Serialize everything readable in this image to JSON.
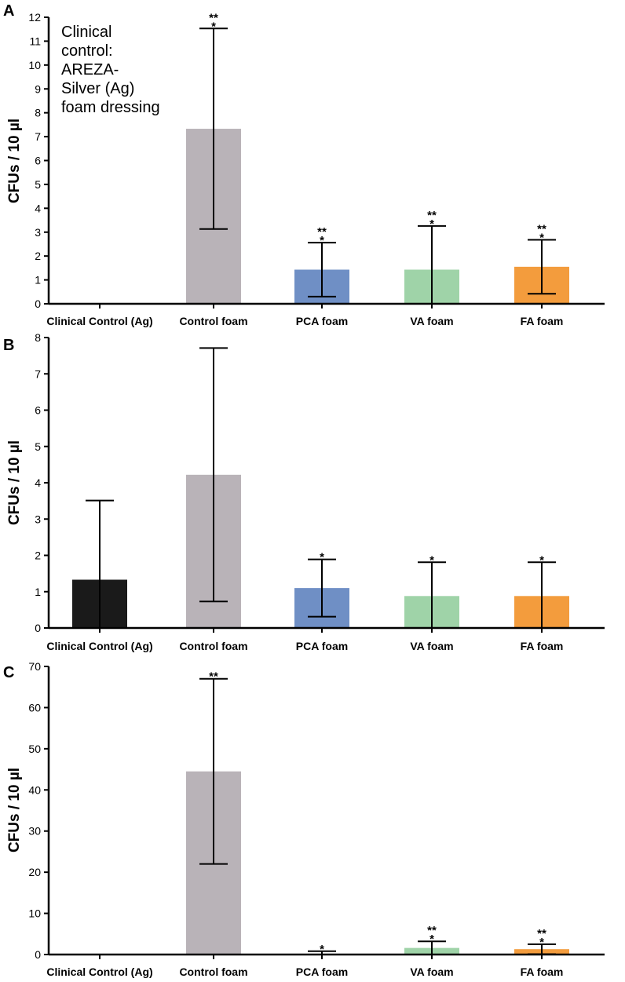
{
  "chart_data": [
    {
      "type": "bar",
      "panel": "A",
      "ylabel": "CFUs / 10 µl",
      "ylim": [
        0,
        12
      ],
      "yticks": [
        "0",
        "1",
        "2",
        "3",
        "4",
        "5",
        "6",
        "7",
        "8",
        "9",
        "10",
        "11",
        "12"
      ],
      "categories": [
        "Clinical Control (Ag)",
        "Control foam",
        "PCA foam",
        "VA foam",
        "FA foam"
      ],
      "values": [
        0,
        7.33,
        1.43,
        1.43,
        1.55
      ],
      "errors": [
        0,
        4.2,
        1.13,
        1.83,
        1.13
      ],
      "significance": [
        "",
        "**\n*",
        "**\n*",
        "**\n*",
        "**\n*"
      ],
      "colors": [
        "#1a1a1a",
        "#b9b3b8",
        "#6f8fc5",
        "#9fd3a8",
        "#f39c3d"
      ],
      "annotation": [
        "Clinical",
        "control:",
        "AREZA-",
        "Silver (Ag)",
        "foam dressing"
      ]
    },
    {
      "type": "bar",
      "panel": "B",
      "ylabel": "CFUs / 10 µl",
      "ylim": [
        0,
        8
      ],
      "yticks": [
        "0",
        "1",
        "2",
        "3",
        "4",
        "5",
        "6",
        "7",
        "8"
      ],
      "categories": [
        "Clinical Control (Ag)",
        "Control foam",
        "PCA foam",
        "VA foam",
        "FA foam"
      ],
      "values": [
        1.33,
        4.22,
        1.1,
        0.88,
        0.88
      ],
      "errors": [
        2.18,
        3.49,
        0.79,
        0.93,
        0.93
      ],
      "significance": [
        "",
        "",
        "*",
        "*",
        "*"
      ],
      "colors": [
        "#1a1a1a",
        "#b9b3b8",
        "#6f8fc5",
        "#9fd3a8",
        "#f39c3d"
      ]
    },
    {
      "type": "bar",
      "panel": "C",
      "ylabel": "CFUs / 10 µl",
      "ylim": [
        0,
        70
      ],
      "yticks": [
        "0",
        "10",
        "20",
        "30",
        "40",
        "50",
        "60",
        "70"
      ],
      "categories": [
        "Clinical Control (Ag)",
        "Control foam",
        "PCA foam",
        "VA foam",
        "FA foam"
      ],
      "values": [
        0,
        44.5,
        0,
        1.6,
        1.3
      ],
      "errors": [
        0,
        22.5,
        0.8,
        1.6,
        1.2
      ],
      "significance": [
        "",
        "**",
        "*",
        "**\n*",
        "**\n*"
      ],
      "colors": [
        "#1a1a1a",
        "#b9b3b8",
        "#6f8fc5",
        "#9fd3a8",
        "#f39c3d"
      ]
    }
  ]
}
